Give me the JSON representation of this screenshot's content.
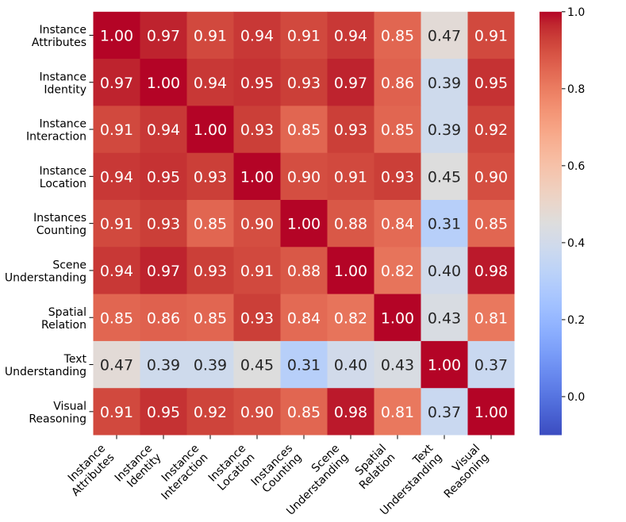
{
  "chart_data": {
    "type": "heatmap",
    "y_categories": [
      [
        "Instance",
        "Attributes"
      ],
      [
        "Instance",
        "Identity"
      ],
      [
        "Instance",
        "Interaction"
      ],
      [
        "Instance",
        "Location"
      ],
      [
        "Instances",
        "Counting"
      ],
      [
        "Scene",
        "Understanding"
      ],
      [
        "Spatial",
        "Relation"
      ],
      [
        "Text",
        "Understanding"
      ],
      [
        "Visual",
        "Reasoning"
      ]
    ],
    "x_categories": [
      [
        "Instance",
        "Attributes"
      ],
      [
        "Instance",
        "Identity"
      ],
      [
        "Instance",
        "Interaction"
      ],
      [
        "Instance",
        "Location"
      ],
      [
        "Instances",
        "Counting"
      ],
      [
        "Scene",
        "Understanding"
      ],
      [
        "Spatial",
        "Relation"
      ],
      [
        "Text",
        "Understanding"
      ],
      [
        "Visual",
        "Reasoning"
      ]
    ],
    "values": [
      [
        1.0,
        0.97,
        0.91,
        0.94,
        0.91,
        0.94,
        0.85,
        0.47,
        0.91
      ],
      [
        0.97,
        1.0,
        0.94,
        0.95,
        0.93,
        0.97,
        0.86,
        0.39,
        0.95
      ],
      [
        0.91,
        0.94,
        1.0,
        0.93,
        0.85,
        0.93,
        0.85,
        0.39,
        0.92
      ],
      [
        0.94,
        0.95,
        0.93,
        1.0,
        0.9,
        0.91,
        0.93,
        0.45,
        0.9
      ],
      [
        0.91,
        0.93,
        0.85,
        0.9,
        1.0,
        0.88,
        0.84,
        0.31,
        0.85
      ],
      [
        0.94,
        0.97,
        0.93,
        0.91,
        0.88,
        1.0,
        0.82,
        0.4,
        0.98
      ],
      [
        0.85,
        0.86,
        0.85,
        0.93,
        0.84,
        0.82,
        1.0,
        0.43,
        0.81
      ],
      [
        0.47,
        0.39,
        0.39,
        0.45,
        0.31,
        0.4,
        0.43,
        1.0,
        0.37
      ],
      [
        0.91,
        0.95,
        0.92,
        0.9,
        0.85,
        0.98,
        0.81,
        0.37,
        1.0
      ]
    ],
    "colorbar": {
      "vmin": -0.1,
      "vmax": 1.0,
      "ticks": [
        0.0,
        0.2,
        0.4,
        0.6,
        0.8,
        1.0
      ]
    }
  }
}
